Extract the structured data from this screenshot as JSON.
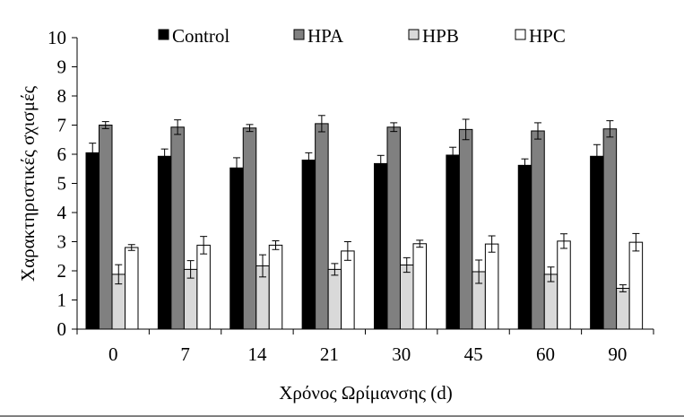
{
  "chart_data": {
    "type": "bar",
    "title": "",
    "xlabel": "Χρόνος Ωρίμανσης (d)",
    "ylabel": "Χαρακτηριστικές σχισμές",
    "ylim": [
      0,
      10
    ],
    "yticks": [
      0,
      1,
      2,
      3,
      4,
      5,
      6,
      7,
      8,
      9,
      10
    ],
    "categories": [
      "0",
      "7",
      "14",
      "21",
      "30",
      "45",
      "60",
      "90"
    ],
    "legend_position": "top",
    "series": [
      {
        "name": "Control",
        "color": "#000000",
        "values": [
          6.05,
          5.93,
          5.53,
          5.8,
          5.68,
          5.97,
          5.62,
          5.93
        ],
        "errors": [
          0.33,
          0.25,
          0.35,
          0.25,
          0.28,
          0.27,
          0.22,
          0.4
        ]
      },
      {
        "name": "HPA",
        "color": "#808080",
        "values": [
          7.0,
          6.93,
          6.9,
          7.05,
          6.93,
          6.85,
          6.8,
          6.87
        ],
        "errors": [
          0.12,
          0.25,
          0.12,
          0.28,
          0.15,
          0.35,
          0.28,
          0.28
        ]
      },
      {
        "name": "HPB",
        "color": "#d9d9d9",
        "values": [
          1.88,
          2.05,
          2.17,
          2.05,
          2.2,
          1.97,
          1.88,
          1.4
        ],
        "errors": [
          0.33,
          0.3,
          0.38,
          0.2,
          0.25,
          0.4,
          0.25,
          0.12
        ]
      },
      {
        "name": "HPC",
        "color": "#ffffff",
        "values": [
          2.8,
          2.88,
          2.88,
          2.68,
          2.93,
          2.92,
          3.02,
          2.98
        ],
        "errors": [
          0.1,
          0.3,
          0.15,
          0.32,
          0.12,
          0.28,
          0.25,
          0.3
        ]
      }
    ]
  }
}
